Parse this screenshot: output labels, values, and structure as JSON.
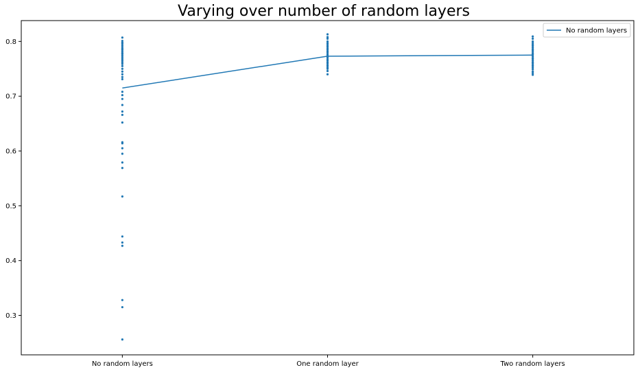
{
  "chart_data": {
    "type": "line",
    "title": "Varying over number of random layers",
    "xlabel": "",
    "ylabel": "",
    "categories": [
      "No random layers",
      "One random layer",
      "Two random layers"
    ],
    "ylim": [
      0.228,
      0.838
    ],
    "yticks": [
      0.3,
      0.4,
      0.5,
      0.6,
      0.7,
      0.8
    ],
    "ytick_labels": [
      "0.3",
      "0.4",
      "0.5",
      "0.6",
      "0.7",
      "0.8"
    ],
    "grid": false,
    "legend_position": "top-right",
    "color": "#1f77b4",
    "series": [
      {
        "name": "No random layers",
        "kind": "line",
        "values": [
          0.715,
          0.773,
          0.775
        ]
      }
    ],
    "scatter": [
      {
        "category": "No random layers",
        "values": [
          0.807,
          0.801,
          0.798,
          0.796,
          0.793,
          0.79,
          0.787,
          0.785,
          0.782,
          0.779,
          0.777,
          0.774,
          0.771,
          0.768,
          0.765,
          0.762,
          0.759,
          0.755,
          0.75,
          0.745,
          0.74,
          0.735,
          0.731,
          0.708,
          0.702,
          0.695,
          0.684,
          0.672,
          0.666,
          0.652,
          0.616,
          0.614,
          0.605,
          0.595,
          0.579,
          0.569,
          0.517,
          0.444,
          0.433,
          0.427,
          0.328,
          0.315,
          0.256
        ]
      },
      {
        "category": "One random layer",
        "values": [
          0.813,
          0.808,
          0.805,
          0.8,
          0.797,
          0.795,
          0.792,
          0.79,
          0.787,
          0.785,
          0.782,
          0.78,
          0.777,
          0.775,
          0.772,
          0.77,
          0.767,
          0.765,
          0.762,
          0.76,
          0.757,
          0.755,
          0.752,
          0.75,
          0.746,
          0.74
        ]
      },
      {
        "category": "Two random layers",
        "values": [
          0.809,
          0.805,
          0.8,
          0.797,
          0.794,
          0.792,
          0.789,
          0.786,
          0.784,
          0.781,
          0.778,
          0.776,
          0.773,
          0.77,
          0.768,
          0.765,
          0.762,
          0.76,
          0.757,
          0.755,
          0.752,
          0.749,
          0.745,
          0.742,
          0.739
        ]
      }
    ]
  }
}
